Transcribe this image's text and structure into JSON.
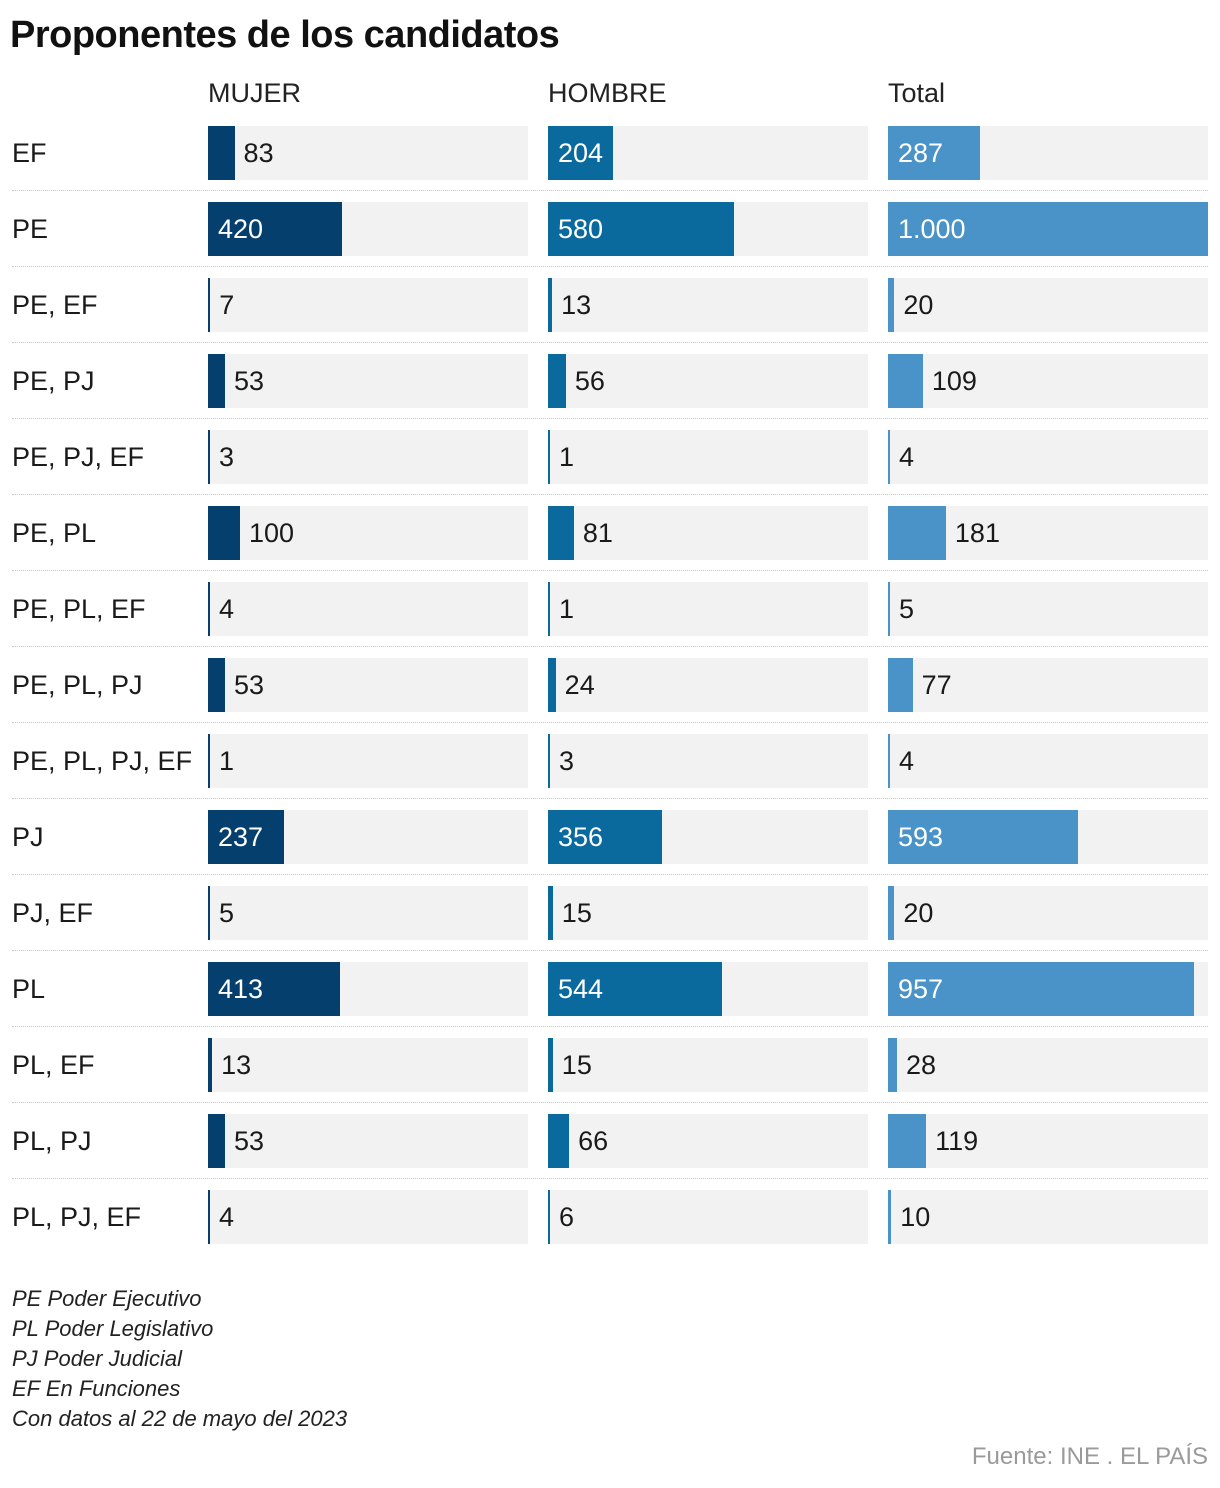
{
  "chart_data": {
    "type": "bar",
    "title": "Proponentes de los candidatos",
    "categories": [
      "EF",
      "PE",
      "PE, EF",
      "PE, PJ",
      "PE, PJ, EF",
      "PE, PL",
      "PE, PL, EF",
      "PE, PL, PJ",
      "PE, PL, PJ, EF",
      "PJ",
      "PJ, EF",
      "PL",
      "PL, EF",
      "PL, PJ",
      "PL, PJ, EF"
    ],
    "series": [
      {
        "name": "MUJER",
        "color": "#053f6e",
        "values": [
          83,
          420,
          7,
          53,
          3,
          100,
          4,
          53,
          1,
          237,
          5,
          413,
          13,
          53,
          4
        ],
        "labels": [
          "83",
          "420",
          "7",
          "53",
          "3",
          "100",
          "4",
          "53",
          "1",
          "237",
          "5",
          "413",
          "13",
          "53",
          "4"
        ]
      },
      {
        "name": "HOMBRE",
        "color": "#0a6a9e",
        "values": [
          204,
          580,
          13,
          56,
          1,
          81,
          1,
          24,
          3,
          356,
          15,
          544,
          15,
          66,
          6
        ],
        "labels": [
          "204",
          "580",
          "13",
          "56",
          "1",
          "81",
          "1",
          "24",
          "3",
          "356",
          "15",
          "544",
          "15",
          "66",
          "6"
        ]
      },
      {
        "name": "Total",
        "color": "#4a93c8",
        "values": [
          287,
          1000,
          20,
          109,
          4,
          181,
          5,
          77,
          4,
          593,
          20,
          957,
          28,
          119,
          10
        ],
        "labels": [
          "287",
          "1.000",
          "20",
          "109",
          "4",
          "181",
          "5",
          "77",
          "4",
          "593",
          "20",
          "957",
          "28",
          "119",
          "10"
        ]
      }
    ],
    "xlim": [
      0,
      1000
    ],
    "background_color": "#f2f2f2"
  },
  "notes": [
    "PE Poder Ejecutivo",
    "PL Poder Legislativo",
    "PJ Poder Judicial",
    "EF En Funciones",
    "Con datos al 22 de mayo del 2023"
  ],
  "source": "Fuente: INE . EL PAÍS"
}
